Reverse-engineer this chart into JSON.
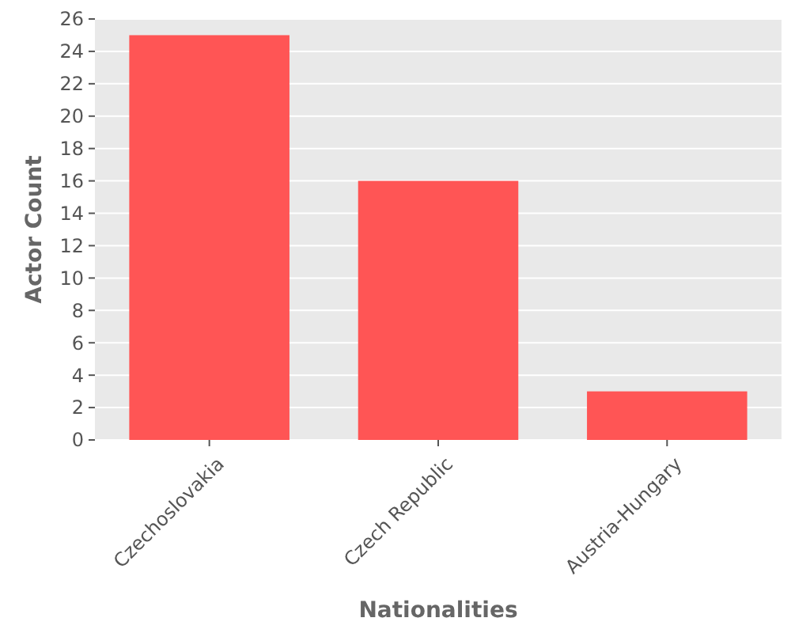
{
  "chart_data": {
    "type": "bar",
    "xlabel": "Nationalities",
    "ylabel": "Actor Count",
    "categories": [
      "Czechoslovakia",
      "Czech Republic",
      "Austria-Hungary"
    ],
    "values": [
      25,
      16,
      3
    ],
    "color": "#ff5555",
    "ylim": [
      0,
      26
    ],
    "yticks": [
      0,
      2,
      4,
      6,
      8,
      10,
      12,
      14,
      16,
      18,
      20,
      22,
      24,
      26
    ],
    "grid": "y"
  }
}
